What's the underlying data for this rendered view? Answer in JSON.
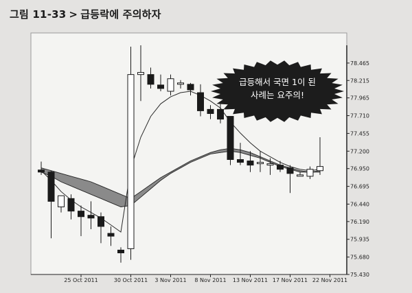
{
  "figure": {
    "number": "그림 11-33",
    "separator": ">",
    "caption": "급등락에 주의하자"
  },
  "callout": {
    "line1": "급등해서 국면 1이 된",
    "line2": "사례는 요주의!"
  },
  "chart_data": {
    "type": "candlestick",
    "title": "",
    "xlabel": "",
    "ylabel": "",
    "ylim": [
      75.43,
      78.72
    ],
    "y_ticks": [
      "78.465",
      "78.215",
      "77.965",
      "77.710",
      "77.455",
      "77.200",
      "76.950",
      "76.695",
      "76.440",
      "76.190",
      "75.935",
      "75.680",
      "75.430"
    ],
    "x_ticks": [
      "25 Oct 2011",
      "30 Oct 2011",
      "3 Nov 2011",
      "8 Nov 2011",
      "13 Nov 2011",
      "17 Nov 2011",
      "22 Nov 2011"
    ],
    "x_tick_index": [
      4,
      9,
      13,
      17,
      21,
      25,
      29
    ],
    "candles": [
      {
        "o": 76.93,
        "h": 77.05,
        "l": 76.86,
        "c": 76.9
      },
      {
        "o": 76.9,
        "h": 76.92,
        "l": 75.95,
        "c": 76.48
      },
      {
        "o": 76.4,
        "h": 76.55,
        "l": 76.32,
        "c": 76.56
      },
      {
        "o": 76.52,
        "h": 76.58,
        "l": 76.22,
        "c": 76.34
      },
      {
        "o": 76.34,
        "h": 76.42,
        "l": 75.98,
        "c": 76.26
      },
      {
        "o": 76.28,
        "h": 76.48,
        "l": 76.08,
        "c": 76.24
      },
      {
        "o": 76.26,
        "h": 76.32,
        "l": 75.88,
        "c": 76.12
      },
      {
        "o": 76.02,
        "h": 76.12,
        "l": 75.84,
        "c": 75.98
      },
      {
        "o": 75.78,
        "h": 75.82,
        "l": 75.6,
        "c": 75.74
      },
      {
        "o": 75.8,
        "h": 78.7,
        "l": 75.64,
        "c": 78.3
      },
      {
        "o": 78.3,
        "h": 78.72,
        "l": 77.92,
        "c": 78.33
      },
      {
        "o": 78.3,
        "h": 78.4,
        "l": 78.1,
        "c": 78.16
      },
      {
        "o": 78.15,
        "h": 78.3,
        "l": 78.06,
        "c": 78.1
      },
      {
        "o": 78.06,
        "h": 78.3,
        "l": 78.0,
        "c": 78.24
      },
      {
        "o": 78.18,
        "h": 78.22,
        "l": 78.1,
        "c": 78.18
      },
      {
        "o": 78.16,
        "h": 78.18,
        "l": 78.0,
        "c": 78.08
      },
      {
        "o": 78.04,
        "h": 78.16,
        "l": 77.7,
        "c": 77.78
      },
      {
        "o": 77.8,
        "h": 77.86,
        "l": 77.66,
        "c": 77.74
      },
      {
        "o": 77.8,
        "h": 77.88,
        "l": 77.6,
        "c": 77.66
      },
      {
        "o": 77.7,
        "h": 77.7,
        "l": 77.0,
        "c": 77.08
      },
      {
        "o": 77.08,
        "h": 77.32,
        "l": 77.0,
        "c": 77.04
      },
      {
        "o": 77.06,
        "h": 77.2,
        "l": 76.9,
        "c": 77.0
      },
      {
        "o": 77.02,
        "h": 77.2,
        "l": 76.9,
        "c": 77.04
      },
      {
        "o": 77.0,
        "h": 77.1,
        "l": 76.86,
        "c": 77.02
      },
      {
        "o": 77.0,
        "h": 77.06,
        "l": 76.9,
        "c": 76.94
      },
      {
        "o": 76.96,
        "h": 77.0,
        "l": 76.6,
        "c": 76.88
      },
      {
        "o": 76.86,
        "h": 76.9,
        "l": 76.84,
        "c": 76.86
      },
      {
        "o": 76.84,
        "h": 76.98,
        "l": 76.8,
        "c": 76.94
      },
      {
        "o": 76.92,
        "h": 77.4,
        "l": 76.86,
        "c": 76.98
      }
    ],
    "series": [
      {
        "values": [
          76.96,
          76.92,
          76.88,
          76.84,
          76.8,
          76.76,
          76.7,
          76.64,
          76.58,
          76.52,
          76.62,
          76.72,
          76.82,
          76.9,
          76.98,
          77.06,
          77.12,
          77.18,
          77.22,
          77.24,
          77.22,
          77.18,
          77.12,
          77.06,
          77.0,
          76.96,
          76.92,
          76.9,
          76.9
        ]
      },
      {
        "values": [
          76.9,
          76.84,
          76.76,
          76.7,
          76.64,
          76.58,
          76.52,
          76.46,
          76.4,
          76.42,
          76.54,
          76.66,
          76.78,
          76.88,
          76.96,
          77.04,
          77.1,
          77.16,
          77.18,
          77.2,
          77.18,
          77.14,
          77.1,
          77.04,
          76.98,
          76.94,
          76.9,
          76.9,
          76.92
        ]
      },
      {
        "values": [
          76.92,
          76.78,
          76.62,
          76.5,
          76.4,
          76.32,
          76.24,
          76.14,
          76.04,
          76.95,
          77.4,
          77.7,
          77.88,
          77.98,
          78.04,
          78.06,
          78.0,
          77.92,
          77.82,
          77.62,
          77.46,
          77.32,
          77.2,
          77.12,
          77.04,
          76.98,
          76.94,
          76.92,
          76.94
        ]
      }
    ],
    "grid": false,
    "legend": "none"
  }
}
